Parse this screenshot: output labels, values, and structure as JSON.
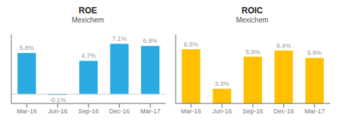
{
  "chart_data": [
    {
      "type": "bar",
      "title": "ROE",
      "subtitle": "Mexichem",
      "categories": [
        "Mar-16",
        "Jun-16",
        "Sep-16",
        "Dec-16",
        "Mar-17"
      ],
      "values": [
        5.8,
        -0.1,
        4.7,
        7.1,
        6.8
      ],
      "value_labels": [
        "5.8%",
        "-0.1%",
        "4.7%",
        "7.1%",
        "6.8%"
      ],
      "color": "#29ABE2",
      "ylim": [
        -1.3,
        8.4
      ],
      "data_labels": true,
      "tick_labels": "x",
      "grid": false
    },
    {
      "type": "bar",
      "title": "ROIC",
      "subtitle": "Mexichem",
      "categories": [
        "Mar-16",
        "Jun-16",
        "Sep-16",
        "Dec-16",
        "Mar-17"
      ],
      "values": [
        6.5,
        3.3,
        5.9,
        6.4,
        5.8
      ],
      "value_labels": [
        "6.5%",
        "3.3%",
        "5.9%",
        "6.4%",
        "5.8%"
      ],
      "color": "#FFC000",
      "ylim": [
        2.1,
        7.7
      ],
      "data_labels": true,
      "tick_labels": "x",
      "grid": false
    }
  ]
}
